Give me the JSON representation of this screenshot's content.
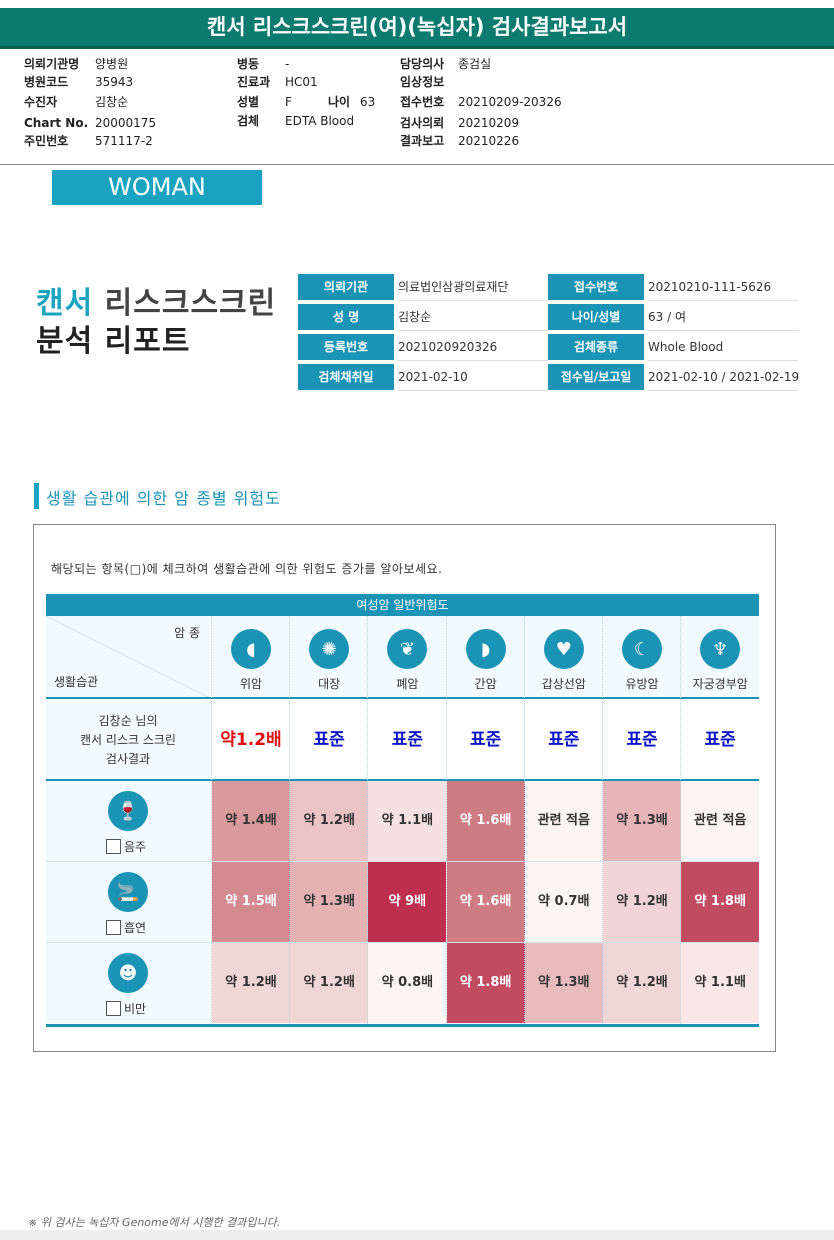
{
  "header": {
    "title": "캔서 리스크스크린(여)(녹십자) 검사결과보고서"
  },
  "meta": {
    "col1": [
      {
        "label": "의뢰기관명",
        "value": "양병원"
      },
      {
        "label": "병원코드",
        "value": "35943"
      },
      {
        "label": "수진자",
        "value": "김창순"
      },
      {
        "label": "Chart No.",
        "value": "20000175"
      },
      {
        "label": "주민번호",
        "value": "571117-2"
      }
    ],
    "col2": [
      {
        "label": "병동",
        "value": "-"
      },
      {
        "label": "진료과",
        "value": "HC01"
      },
      {
        "label": "성별",
        "value": "F"
      },
      {
        "label": "검체",
        "value": "EDTA Blood"
      }
    ],
    "age_label": "나이",
    "age_value": "63",
    "col3": [
      {
        "label": "담당의사",
        "value": "종검실"
      },
      {
        "label": "임상정보",
        "value": ""
      },
      {
        "label": "접수번호",
        "value": "20210209-20326"
      },
      {
        "label": "검사의뢰",
        "value": "20210209"
      },
      {
        "label": "결과보고",
        "value": "20210226"
      }
    ]
  },
  "badge": "WOMAN",
  "report": {
    "title_accent": "캔서",
    "title_rest": " 리스크스크린",
    "title_line2": "분석 리포트"
  },
  "info": [
    {
      "label": "의뢰기관",
      "value": "의료법인삼광의료재단"
    },
    {
      "label": "접수번호",
      "value": "20210210-111-5626"
    },
    {
      "label": "성    명",
      "value": "김창순"
    },
    {
      "label": "나이/성별",
      "value": "63   /     여"
    },
    {
      "label": "등록번호",
      "value": "2021020920326"
    },
    {
      "label": "검체종류",
      "value": "Whole Blood"
    },
    {
      "label": "검체채취일",
      "value": "2021-02-10"
    },
    {
      "label": "접수일/보고일",
      "value": "2021-02-10 / 2021-02-19"
    }
  ],
  "section": {
    "title": "생활 습관에 의한 암 종별 위험도",
    "instruction": "해당되는 항목(□)에 체크하여 생활습관에 의한 위험도 증가를 알아보세요.",
    "table_title": "여성암 일반위험도",
    "corner_top": "암 종",
    "corner_bottom": "생활습관",
    "cancers": [
      {
        "name": "위암",
        "icon": "stomach-icon"
      },
      {
        "name": "대장",
        "icon": "colon-icon"
      },
      {
        "name": "폐암",
        "icon": "lungs-icon"
      },
      {
        "name": "간암",
        "icon": "liver-icon"
      },
      {
        "name": "갑상선암",
        "icon": "thyroid-icon"
      },
      {
        "name": "유방암",
        "icon": "breast-icon"
      },
      {
        "name": "자궁경부암",
        "icon": "uterus-icon"
      }
    ],
    "result_label": [
      "김창순 님의",
      "캔서 리스크 스크린",
      "검사결과"
    ],
    "results": [
      "약1.2배",
      "표준",
      "표준",
      "표준",
      "표준",
      "표준",
      "표준"
    ],
    "result_highlight_color": "#e01010",
    "result_normal_color": "#0b16c9",
    "habits": [
      {
        "name": "음주",
        "icon": "drinking-icon",
        "cells": [
          {
            "t": "약 1.4배",
            "c": "#d89a9c"
          },
          {
            "t": "약 1.2배",
            "c": "#ebc3c4"
          },
          {
            "t": "약 1.1배",
            "c": "#f5e1e1"
          },
          {
            "t": "약 1.6배",
            "c": "#cf7b83"
          },
          {
            "t": "관련 적음",
            "c": "#fdf5f4"
          },
          {
            "t": "약 1.3배",
            "c": "#e7b5b7"
          },
          {
            "t": "관련 적음",
            "c": "#fdf5f4"
          }
        ]
      },
      {
        "name": "흡연",
        "icon": "smoking-icon",
        "cells": [
          {
            "t": "약 1.5배",
            "c": "#d38a91"
          },
          {
            "t": "약 1.3배",
            "c": "#e5b2b4"
          },
          {
            "t": "약 9배",
            "c": "#be2e4e"
          },
          {
            "t": "약 1.6배",
            "c": "#cf7b83"
          },
          {
            "t": "약 0.7배",
            "c": "#fdf5f4"
          },
          {
            "t": "약 1.2배",
            "c": "#f1d4d5"
          },
          {
            "t": "약 1.8배",
            "c": "#c14b61"
          }
        ]
      },
      {
        "name": "비만",
        "icon": "obesity-icon",
        "cells": [
          {
            "t": "약 1.2배",
            "c": "#f1d6d6"
          },
          {
            "t": "약 1.2배",
            "c": "#f1d6d6"
          },
          {
            "t": "약 0.8배",
            "c": "#fdf5f4"
          },
          {
            "t": "약 1.8배",
            "c": "#c14b61"
          },
          {
            "t": "약 1.3배",
            "c": "#e8bcbd"
          },
          {
            "t": "약 1.2배",
            "c": "#f1d6d6"
          },
          {
            "t": "약 1.1배",
            "c": "#f8e7e6"
          }
        ]
      }
    ]
  },
  "footer": "※ 위 검사는 녹십자 Genome에서 시행한 결과입니다."
}
